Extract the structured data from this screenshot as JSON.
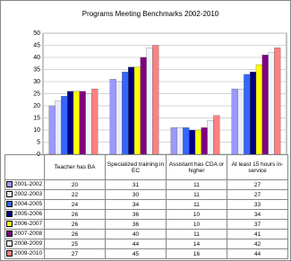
{
  "chart_data": {
    "type": "bar",
    "title": "Programs Meeting Benchmarks 2002-2010",
    "categories": [
      "Teacher has BA",
      "Specialized training in EC",
      "Assistant has CDA or higher",
      "At least 15 hours in-service"
    ],
    "series": [
      {
        "name": "2001-2002",
        "color": "#9999ff",
        "values": [
          20,
          31,
          11,
          27
        ]
      },
      {
        "name": "2002-2003",
        "color": "#e8e8ff",
        "values": [
          22,
          30,
          11,
          27
        ]
      },
      {
        "name": "2004-2005",
        "color": "#3366ff",
        "values": [
          24,
          34,
          11,
          33
        ]
      },
      {
        "name": "2005-2006",
        "color": "#000080",
        "values": [
          26,
          36,
          10,
          34
        ]
      },
      {
        "name": "2006-2007",
        "color": "#ffff00",
        "values": [
          26,
          36,
          10,
          37
        ]
      },
      {
        "name": "2007-2008",
        "color": "#800080",
        "values": [
          26,
          40,
          11,
          41
        ]
      },
      {
        "name": "2008-2009",
        "color": "#eef6ff",
        "values": [
          25,
          44,
          14,
          42
        ]
      },
      {
        "name": "2009-2010",
        "color": "#ff8080",
        "values": [
          27,
          45,
          16,
          44
        ]
      }
    ],
    "ylim": [
      0,
      50
    ],
    "yticks": [
      0,
      5,
      10,
      15,
      20,
      25,
      30,
      35,
      40,
      45,
      50
    ],
    "grid": true
  }
}
